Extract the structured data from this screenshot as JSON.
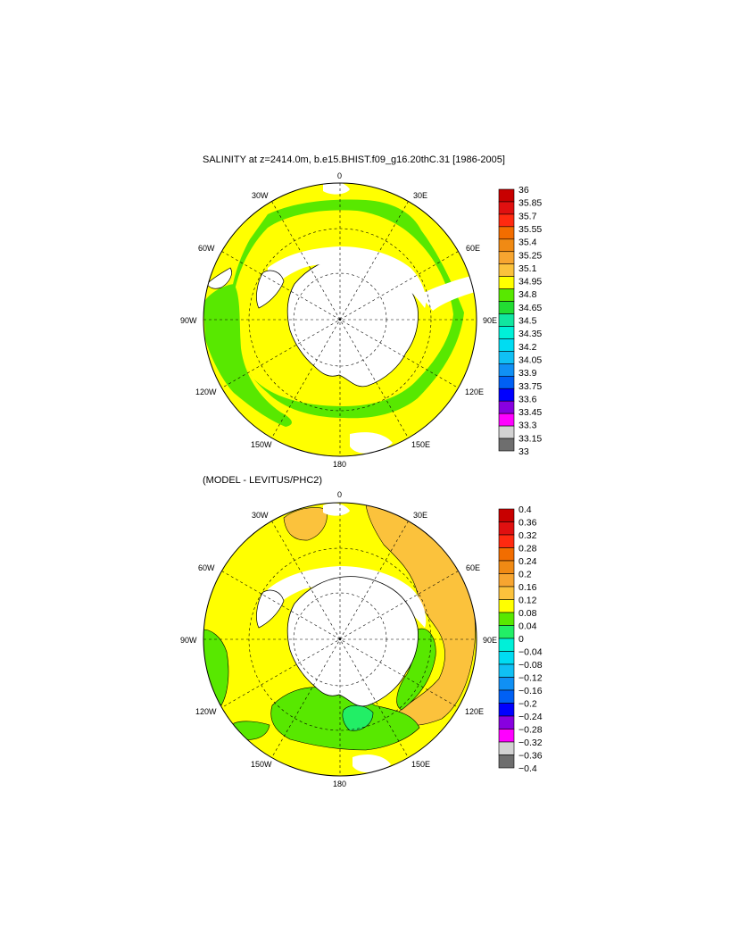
{
  "panels": [
    {
      "title": "SALINITY at z=2414.0m, b.e15.BHIST.f09_g16.20thC.31 [1986-2005]",
      "colorbar": {
        "labels": [
          "36",
          "35.85",
          "35.7",
          "35.55",
          "35.4",
          "35.25",
          "35.1",
          "34.95",
          "34.8",
          "34.65",
          "34.5",
          "34.35",
          "34.2",
          "34.05",
          "33.9",
          "33.75",
          "33.6",
          "33.45",
          "33.3",
          "33.15",
          "33"
        ],
        "colors": [
          "#c80000",
          "#e01010",
          "#ff2a10",
          "#f26d00",
          "#f08a14",
          "#f7a530",
          "#fbc23c",
          "#ffff00",
          "#58e800",
          "#22dd33",
          "#10e6a0",
          "#00f0d8",
          "#00dcf2",
          "#10c0f4",
          "#1090f4",
          "#0060f4",
          "#0000ff",
          "#8800e0",
          "#ff00ff",
          "#d2d2d2",
          "#6e6e6e"
        ]
      },
      "map": {
        "outer_color": "#ffff00",
        "ring_color": "#58e800",
        "inner_ring_color": "#ffff00"
      }
    },
    {
      "title": "(MODEL - LEVITUS/PHC2)",
      "colorbar": {
        "labels": [
          "0.4",
          "0.36",
          "0.32",
          "0.28",
          "0.24",
          "0.2",
          "0.16",
          "0.12",
          "0.08",
          "0.04",
          "0",
          "−0.04",
          "−0.08",
          "−0.12",
          "−0.16",
          "−0.2",
          "−0.24",
          "−0.28",
          "−0.32",
          "−0.36",
          "−0.4"
        ],
        "colors": [
          "#c80000",
          "#e01010",
          "#ff2a10",
          "#f26d00",
          "#f08a14",
          "#f7a530",
          "#fbc23c",
          "#ffff00",
          "#58e800",
          "#22ee66",
          "#00f0d8",
          "#00dcf2",
          "#10c0f4",
          "#1090f4",
          "#0060f4",
          "#0000ff",
          "#8800e0",
          "#ff00ff",
          "#d2d2d2",
          "#6e6e6e"
        ]
      },
      "map": {
        "base_color": "#ffff00",
        "orange_color": "#fbc23c",
        "green_color": "#58e800",
        "teal_color": "#22ee66"
      }
    }
  ],
  "lon_labels": [
    "0",
    "30E",
    "60E",
    "90E",
    "120E",
    "150E",
    "180",
    "150W",
    "120W",
    "90W",
    "60W",
    "30W"
  ],
  "land_color": "#ffffff",
  "missing_color": "#ffffff"
}
